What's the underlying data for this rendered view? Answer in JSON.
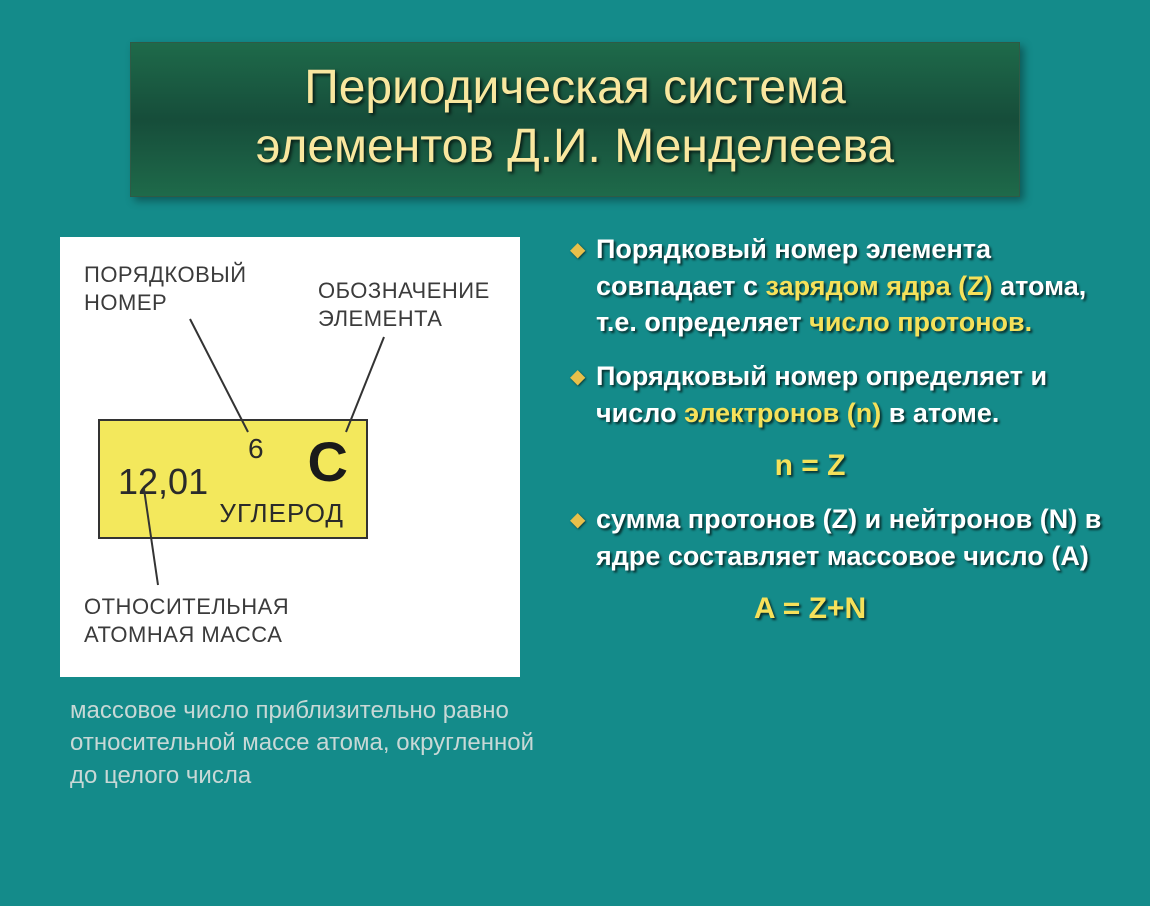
{
  "title": {
    "line1": "Периодическая система",
    "line2": "элементов  Д.И. Менделеева"
  },
  "diagram": {
    "labels": {
      "atomic_number": "ПОРЯДКОВЫЙ\nНОМЕР",
      "symbol": "ОБОЗНАЧЕНИЕ\nЭЛЕМЕНТА",
      "atomic_mass": "ОТНОСИТЕЛЬНАЯ\nАТОМНАЯ МАССА"
    },
    "element": {
      "mass": "12,01",
      "number": "6",
      "symbol": "C",
      "name": "УГЛЕРОД"
    },
    "colors": {
      "box_bg": "#f3e85c",
      "box_border": "#333333",
      "bg": "#ffffff",
      "label_color": "#3b3b3b",
      "line_color": "#333333"
    }
  },
  "footnote": "массовое число приблизительно равно относительной массе атома, округленной до целого числа",
  "bullets": [
    {
      "parts": [
        {
          "t": "Порядковый номер элемента совпадает с ",
          "hl": false
        },
        {
          "t": "зарядом ядра (Z)",
          "hl": true
        },
        {
          "t": " атома, т.е. определяет ",
          "hl": false
        },
        {
          "t": "число протонов.",
          "hl": true
        }
      ]
    },
    {
      "parts": [
        {
          "t": "Порядковый номер определяет и число ",
          "hl": false
        },
        {
          "t": "электронов (n)",
          "hl": true
        },
        {
          "t": " в атоме.",
          "hl": false
        }
      ],
      "equation": "n = Z"
    },
    {
      "parts": [
        {
          "t": "сумма протонов (Z) и нейтронов (N) в ядре составляет массовое число (А)",
          "hl": false
        }
      ],
      "equation": "A = Z+N"
    }
  ],
  "style": {
    "slide_bg": "#148b8a",
    "title_text_color": "#f9e79f",
    "highlight_color": "#f5e15a",
    "body_text_color": "#ffffff",
    "footnote_color": "#c8d8d6",
    "bullet_marker_color": "#e8c04a"
  }
}
